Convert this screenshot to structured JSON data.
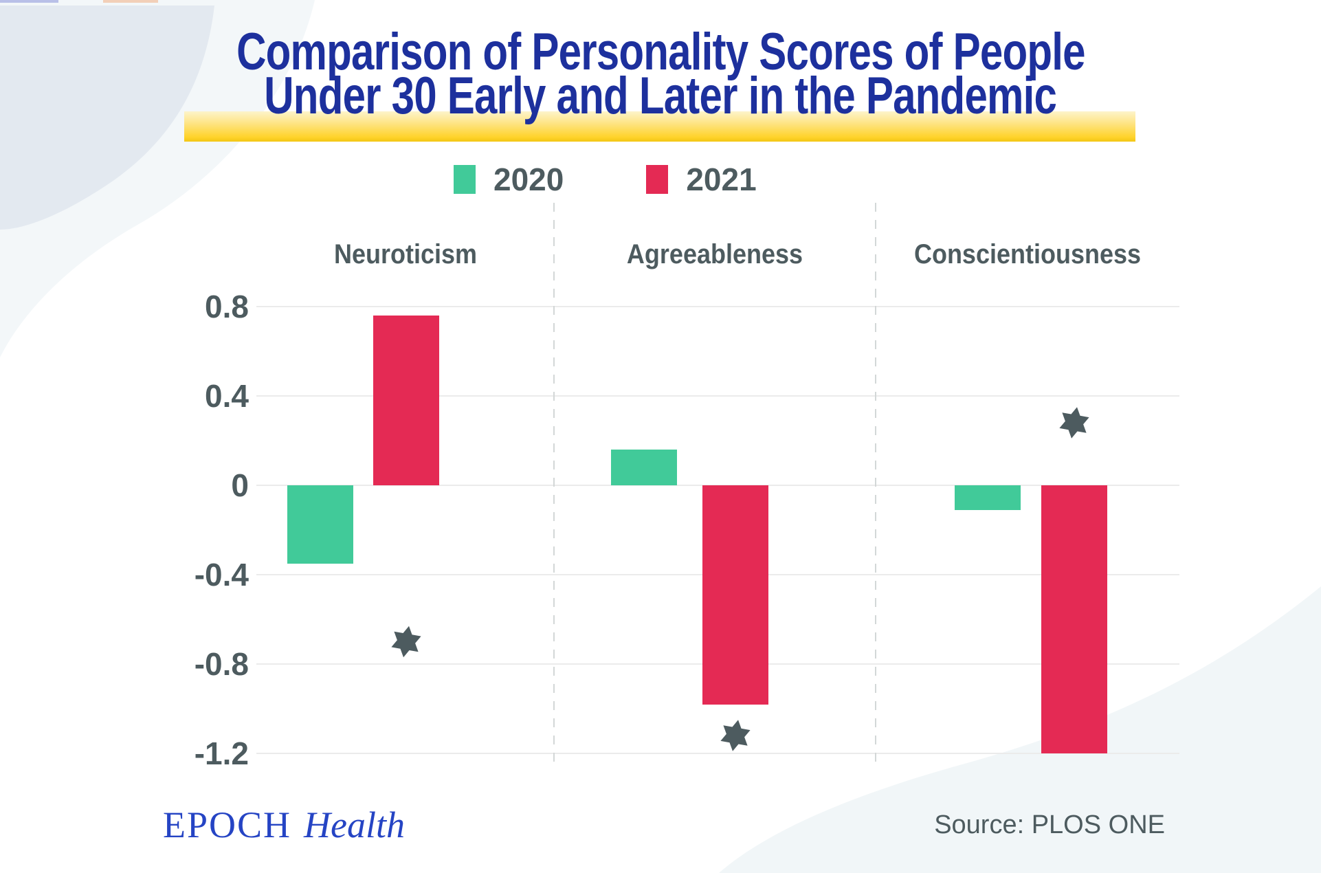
{
  "title": {
    "line1": "Comparison of Personality Scores of People",
    "line2": "Under 30 Early and Later in the Pandemic"
  },
  "legend": [
    {
      "label": "2020",
      "color": "#41ca99"
    },
    {
      "label": "2021",
      "color": "#e42a54"
    }
  ],
  "chart_data": {
    "type": "bar",
    "title": "Comparison of Personality Scores of People Under 30 Early and Later in the Pandemic",
    "panels": [
      "Neuroticism",
      "Agreeableness",
      "Conscientiousness"
    ],
    "series": [
      {
        "name": "2020",
        "color": "#41ca99",
        "values": [
          -0.35,
          0.16,
          -0.11
        ]
      },
      {
        "name": "2021",
        "color": "#e42a54",
        "values": [
          0.76,
          -0.98,
          -1.2
        ]
      }
    ],
    "significance_stars": [
      {
        "panel": "Neuroticism",
        "series": "2021",
        "value": -0.7
      },
      {
        "panel": "Agreeableness",
        "series": "2021",
        "value": -1.12
      },
      {
        "panel": "Conscientiousness",
        "series": "2021",
        "value": 0.28
      }
    ],
    "yticks": [
      {
        "label": "0.8",
        "value": 0.8
      },
      {
        "label": "0.4",
        "value": 0.4
      },
      {
        "label": "0",
        "value": 0
      },
      {
        "label": "-0.4",
        "value": -0.4
      },
      {
        "label": "-0.8",
        "value": -0.8
      },
      {
        "label": "-1.2",
        "value": -1.2
      }
    ],
    "ylim": [
      -1.32,
      0.92
    ],
    "grid": true,
    "legend_position": "top",
    "star_color": "#4d5b5f"
  },
  "footer": {
    "brand_caps": "EPOCH",
    "brand_italic": "Health",
    "source": "Source: PLOS ONE"
  },
  "colors": {
    "title_navy": "#1d309d",
    "slate_text": "#4d5b5f",
    "highlight_gold": "#ffd32b",
    "brand_blue": "#2544c4"
  }
}
